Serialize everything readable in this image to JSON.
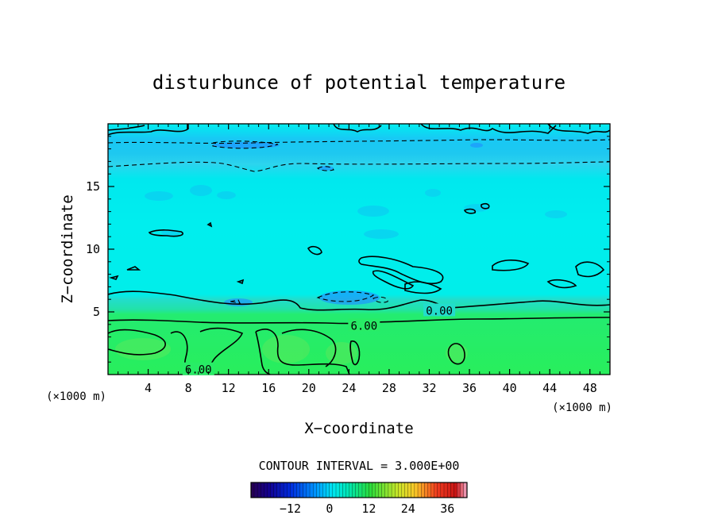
{
  "chart_data": {
    "type": "heatmap",
    "title": "disturbunce of potential temperature",
    "xlabel": "X−coordinate",
    "ylabel": "Z−coordinate",
    "x_unit": "(×1000 m)",
    "y_unit": "(×1000 m)",
    "xlim": [
      0,
      50
    ],
    "ylim": [
      0,
      20
    ],
    "x_ticks": [
      4,
      8,
      12,
      16,
      20,
      24,
      28,
      32,
      36,
      40,
      44,
      48
    ],
    "y_ticks": [
      5,
      10,
      15
    ],
    "contour_interval_text": "CONTOUR INTERVAL = 3.000E+00",
    "contour_interval": 3.0,
    "contour_labels": [
      {
        "text": "0.00",
        "value": 0.0,
        "x": 33,
        "z": 5.1
      },
      {
        "text": "6.00",
        "value": 6.0,
        "x": 25.5,
        "z": 3.9
      },
      {
        "text": "6.00",
        "value": 6.0,
        "x": 9,
        "z": 0.4
      }
    ],
    "colorbar": {
      "min": -24,
      "max": 42,
      "tick_labels": [
        "−12",
        "0",
        "12",
        "24",
        "36"
      ],
      "tick_values": [
        -12,
        0,
        12,
        24,
        36
      ]
    },
    "layers": [
      {
        "z_range": [
          0,
          5
        ],
        "value": 6,
        "description_color": "#22ee66"
      },
      {
        "z_range": [
          5,
          6.5
        ],
        "value": 1.5,
        "description_color": "#22ddcc"
      },
      {
        "z_range": [
          6.5,
          16.5
        ],
        "value": 0,
        "description_color": "#00eeee"
      },
      {
        "z_range": [
          16.5,
          18.8
        ],
        "value": -3,
        "description_color": "#1ec8f0"
      },
      {
        "z_range": [
          18.8,
          20
        ],
        "value": 0,
        "description_color": "#00e8f0"
      }
    ],
    "colors": {
      "warm_layer": "#22ee66",
      "neutral": "#00eeee",
      "cool_band": "#1ec8f0",
      "contour": "#000000"
    },
    "grid": false
  }
}
